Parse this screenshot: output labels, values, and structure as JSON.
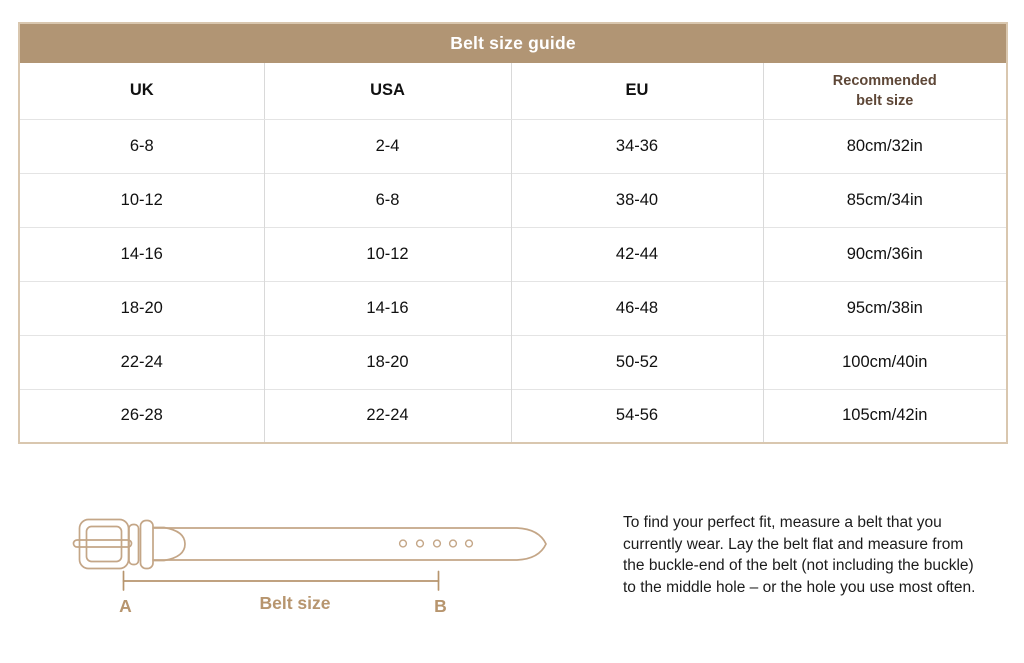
{
  "table": {
    "title": "Belt size guide",
    "columns": [
      "UK",
      "USA",
      "EU",
      "Recommended\nbelt size"
    ],
    "rows": [
      [
        "6-8",
        "2-4",
        "34-36",
        "80cm/32in"
      ],
      [
        "10-12",
        "6-8",
        "38-40",
        "85cm/34in"
      ],
      [
        "14-16",
        "10-12",
        "42-44",
        "90cm/36in"
      ],
      [
        "18-20",
        "14-16",
        "46-48",
        "95cm/38in"
      ],
      [
        "22-24",
        "18-20",
        "50-52",
        "100cm/40in"
      ],
      [
        "26-28",
        "22-24",
        "54-56",
        "105cm/42in"
      ]
    ]
  },
  "diagram": {
    "label_a": "A",
    "label_b": "B",
    "measure_label": "Belt size"
  },
  "instructions": "To find your perfect fit, measure a belt that you currently wear. Lay the belt flat and measure from the buckle-end of the belt (not including the buckle) to the middle hole – or the hole you use most often.",
  "colors": {
    "header_bg": "#b19574",
    "table_outer_border": "#d9c7af",
    "column_divider": "#d9d9d9",
    "row_divider": "#e4e4e4",
    "recommended_header_text": "#5e4737",
    "belt_outline": "#c4a687",
    "diagram_label": "#b7956e",
    "body_text": "#1c1c1c"
  }
}
